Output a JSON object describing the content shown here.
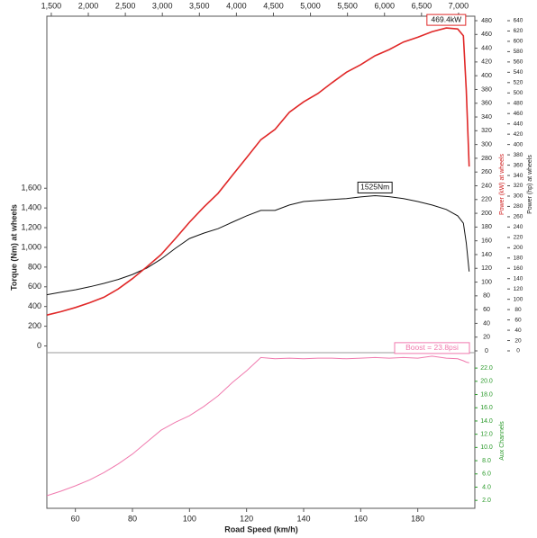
{
  "chart_data": {
    "type": "line",
    "x_label": "Road Speed (km/h)",
    "y_label": "Torque (Nm) at wheels",
    "y2_label": "Power (kW) at wheels",
    "y3_label": "Power (hp) at wheels",
    "y4_label": "Aux Channels",
    "x": [
      50,
      55,
      60,
      65,
      70,
      75,
      80,
      85,
      90,
      95,
      100,
      105,
      110,
      115,
      120,
      125,
      130,
      135,
      140,
      145,
      150,
      155,
      160,
      165,
      170,
      175,
      180,
      185,
      190,
      194,
      196,
      197,
      198
    ],
    "xlim": [
      50,
      200
    ],
    "xticks": [
      60,
      80,
      100,
      120,
      140,
      160,
      180
    ],
    "x2lim": [
      1440,
      7220
    ],
    "x2ticks": [
      {
        "value": 1500,
        "label": "1,500"
      },
      {
        "value": 2000,
        "label": "2,000"
      },
      {
        "value": 2500,
        "label": "2,500"
      },
      {
        "value": 3000,
        "label": "3,000"
      },
      {
        "value": 3500,
        "label": "3,500"
      },
      {
        "value": 4000,
        "label": "4,000"
      },
      {
        "value": 4500,
        "label": "4,500"
      },
      {
        "value": 5000,
        "label": "5,000"
      },
      {
        "value": 5500,
        "label": "5,500"
      },
      {
        "value": 6000,
        "label": "6,000"
      },
      {
        "value": 6500,
        "label": "6,500"
      },
      {
        "value": 7000,
        "label": "7,000"
      }
    ],
    "ylim": [
      -50,
      3300
    ],
    "yticks": [
      0,
      200,
      400,
      600,
      800,
      {
        "value": 1000,
        "label": "1,000"
      },
      {
        "value": 1200,
        "label": "1,200"
      },
      {
        "value": 1400,
        "label": "1,400"
      },
      {
        "value": 1600,
        "label": "1,600"
      }
    ],
    "y2lim": [
      0,
      480
    ],
    "y2ticks": [
      0,
      20,
      40,
      60,
      80,
      100,
      120,
      140,
      160,
      180,
      200,
      220,
      240,
      260,
      280,
      300,
      320,
      340,
      360,
      380,
      400,
      420,
      440,
      460,
      480
    ],
    "y3lim": [
      0,
      640
    ],
    "y3ticks": [
      0,
      20,
      40,
      60,
      80,
      100,
      120,
      140,
      160,
      180,
      200,
      220,
      240,
      260,
      280,
      300,
      320,
      340,
      360,
      380,
      400,
      420,
      440,
      460,
      480,
      500,
      520,
      540,
      560,
      580,
      600,
      620,
      640
    ],
    "y4lim": [
      0.8,
      24.6
    ],
    "y4ticks": [
      {
        "value": 2,
        "label": "2.0"
      },
      {
        "value": 4,
        "label": "4.0"
      },
      {
        "value": 6,
        "label": "6.0"
      },
      {
        "value": 8,
        "label": "8.0"
      },
      {
        "value": 10,
        "label": "10.0"
      },
      {
        "value": 12,
        "label": "12.0"
      },
      {
        "value": 14,
        "label": "14.0"
      },
      {
        "value": 16,
        "label": "16.0"
      },
      {
        "value": 18,
        "label": "18.0"
      },
      {
        "value": 20,
        "label": "20.0"
      },
      {
        "value": 22,
        "label": "22.0"
      }
    ],
    "series": [
      {
        "axis": "y",
        "color": "#111111",
        "values": [
          520,
          545,
          570,
          600,
          635,
          675,
          725,
          790,
          880,
          990,
          1090,
          1145,
          1190,
          1255,
          1320,
          1375,
          1375,
          1430,
          1465,
          1475,
          1485,
          1495,
          1512,
          1525,
          1515,
          1495,
          1465,
          1430,
          1385,
          1320,
          1245,
          1045,
          755
        ],
        "value_labels": [
          null,
          null,
          null,
          null,
          null,
          null,
          null,
          null,
          null,
          null,
          null,
          null,
          null,
          null,
          null,
          null,
          null,
          null,
          null,
          null,
          null,
          null,
          null,
          "1525Nm",
          null,
          null,
          null,
          null,
          null,
          null,
          null,
          null,
          null
        ]
      },
      {
        "axis": "y2",
        "color": "#e02828",
        "values": [
          52,
          57,
          63,
          70,
          78,
          90,
          105,
          122,
          140,
          163,
          187,
          209,
          229,
          255,
          281,
          307,
          322,
          347,
          362,
          374,
          390,
          405,
          416,
          429,
          438,
          449,
          456,
          464,
          469.4,
          468,
          458,
          379,
          268
        ],
        "value_labels": [
          null,
          null,
          null,
          null,
          null,
          null,
          null,
          null,
          null,
          null,
          null,
          null,
          null,
          null,
          null,
          null,
          null,
          null,
          null,
          null,
          null,
          null,
          null,
          null,
          null,
          null,
          null,
          null,
          "469.4kW",
          null,
          null,
          null,
          null
        ]
      },
      {
        "axis": "y4",
        "color": "#f07aae",
        "values": [
          2.7,
          3.4,
          4.2,
          5.1,
          6.2,
          7.5,
          9.0,
          10.8,
          12.6,
          13.8,
          14.8,
          16.2,
          17.8,
          19.8,
          21.6,
          23.6,
          23.4,
          23.5,
          23.4,
          23.5,
          23.5,
          23.4,
          23.5,
          23.6,
          23.5,
          23.6,
          23.5,
          23.8,
          23.5,
          23.4,
          23.1,
          22.9,
          22.8
        ],
        "value_labels": [
          null,
          null,
          null,
          null,
          null,
          null,
          null,
          null,
          null,
          null,
          null,
          null,
          null,
          null,
          null,
          null,
          null,
          null,
          null,
          null,
          null,
          null,
          null,
          null,
          null,
          null,
          null,
          "Boost = 23.8psi",
          null,
          null,
          null,
          null,
          null
        ]
      }
    ]
  }
}
